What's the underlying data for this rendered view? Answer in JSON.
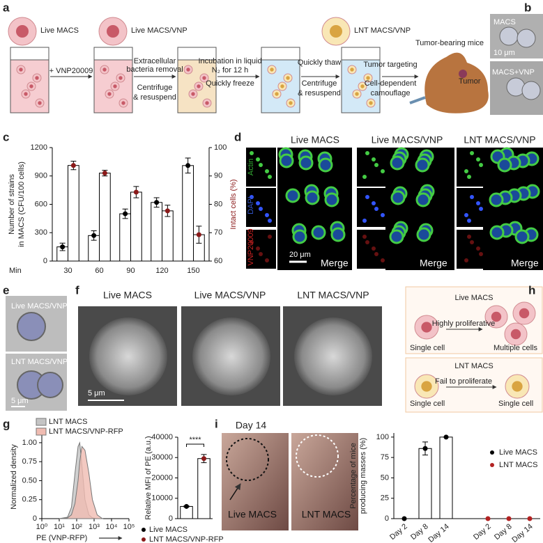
{
  "figure": {
    "letters": [
      "a",
      "b",
      "c",
      "d",
      "e",
      "f",
      "g",
      "h",
      "i"
    ],
    "a": {
      "cells": [
        "Live MACS",
        "Live MACS/VNP",
        "LNT MACS/VNP"
      ],
      "step1": "+ VNP20009",
      "step2": [
        "Extracellular",
        "bacteria removal",
        "Centrifuge",
        "& resuspend"
      ],
      "step3": [
        "Incubation in liquid",
        "N₂ for 12 h",
        "Quickly freeze"
      ],
      "step4": [
        "Quickly thaw",
        "Centrifuge",
        "& resuspend"
      ],
      "step5": [
        "Tumor targeting",
        "Cell-dependent",
        "camouflage"
      ],
      "mice": "Tumor-bearing mice",
      "tumor": "Tumor"
    },
    "b": {
      "top": "MACS",
      "scale": "10 μm",
      "bottom": "MACS+VNP"
    },
    "d": {
      "titles": [
        "Live MACS",
        "Live MACS/VNP",
        "LNT MACS/VNP"
      ],
      "channels": [
        "Actin",
        "DAPI",
        "VNP20009"
      ],
      "merge": "Merge",
      "scale": "20 μm"
    },
    "e": {
      "top": "Live MACS/VNP",
      "bottom": "LNT MACS/VNP",
      "scale": "5 μm"
    },
    "f": {
      "titles": [
        "Live MACS",
        "Live MACS/VNP",
        "LNT MACS/VNP"
      ],
      "scale": "5 μm"
    },
    "h": {
      "top": {
        "title": "Live MACS",
        "arrow": "Highly proliferative",
        "from": "Single cell",
        "to": "Multiple cells"
      },
      "bottom": {
        "title": "LNT MACS",
        "arrow": "Fail to proliferate",
        "from": "Single cell",
        "to": "Single cell"
      }
    },
    "i": {
      "title": "Day 14",
      "images": [
        "Live MACS",
        "LNT MACS"
      ]
    }
  },
  "chart_data": [
    {
      "type": "bar",
      "categories": [
        "30",
        "60",
        "90",
        "120",
        "150"
      ],
      "x_label": "Min",
      "y_label": [
        "Number of strains",
        "in MACS (CFU/100 cells)"
      ],
      "y2_label": "Intact cells (%)",
      "ylim": [
        0,
        1200
      ],
      "yticks": [
        0,
        300,
        600,
        900,
        1200
      ],
      "y2lim": [
        60,
        100
      ],
      "y2ticks": [
        60,
        70,
        80,
        90,
        100
      ],
      "series": [
        {
          "color": "#000000",
          "values": [
            150,
            270,
            500,
            620,
            1010
          ],
          "errors": [
            40,
            50,
            50,
            50,
            80
          ]
        },
        {
          "color": "#8b1a1a",
          "axis": "y2",
          "values": [
            93.7,
            91,
            84.3,
            77.7,
            69.3
          ],
          "errors": [
            1.5,
            1,
            2,
            2,
            3
          ]
        }
      ]
    },
    {
      "type": "line",
      "xscale": "log",
      "x": [
        10,
        30,
        50,
        80,
        120,
        150,
        200,
        300,
        500,
        800,
        1500,
        3000
      ],
      "xlim": [
        1,
        100000
      ],
      "xticks": [
        {
          "value": 1,
          "label": "10⁰"
        },
        {
          "value": 10,
          "label": "10¹"
        },
        {
          "value": 100,
          "label": "10²"
        },
        {
          "value": 1000,
          "label": "10³"
        },
        {
          "value": 10000,
          "label": "10⁴"
        },
        {
          "value": 100000,
          "label": "10⁵"
        }
      ],
      "ylim": [
        0,
        1.1
      ],
      "yticks": [
        0,
        0.25,
        {
          "value": 0.5,
          "label": "0.50"
        },
        0.75,
        {
          "value": 1,
          "label": "1.00"
        }
      ],
      "x_label": "PE (VNP-RFP)",
      "y_label": "Normalized density",
      "series": [
        {
          "name": "LNT MACS",
          "color": "#c4c4c4",
          "values": [
            0,
            0.02,
            0.15,
            0.6,
            0.95,
            1.0,
            0.7,
            0.25,
            0.05,
            0.01,
            0,
            0
          ]
        },
        {
          "name": "LNT MACS/VNP-RFP",
          "color": "#f0bcb2",
          "values": [
            0,
            0.01,
            0.05,
            0.2,
            0.5,
            0.75,
            0.95,
            0.9,
            0.6,
            0.25,
            0.05,
            0
          ]
        }
      ]
    },
    {
      "type": "bar",
      "categories": [
        "Live MACS",
        "LNT MACS/VNP-RFP"
      ],
      "values": [
        6000,
        29500
      ],
      "errors": [
        300,
        2000
      ],
      "colors": [
        "#000000",
        "#8b1a1a"
      ],
      "ylim": [
        0,
        40000
      ],
      "yticks": [
        0,
        10000,
        20000,
        30000,
        40000
      ],
      "y_label": "Relative MFI of PE (a.u.)",
      "annotation": "****"
    },
    {
      "type": "bar",
      "categories": [
        "Day 2",
        "Day 8",
        "Day 14"
      ],
      "ylim": [
        0,
        105
      ],
      "yticks": [
        0,
        25,
        50,
        75,
        100
      ],
      "y_label": [
        "Percentage of mice",
        "producing masses (%)"
      ],
      "series": [
        {
          "name": "Live MACS",
          "color": "#000000",
          "values": [
            0,
            86,
            100
          ],
          "errors": [
            0,
            8,
            0
          ]
        },
        {
          "name": "LNT MACS",
          "color": "#b22222",
          "values": [
            0,
            0,
            0
          ],
          "errors": [
            0,
            0,
            0
          ]
        }
      ]
    }
  ]
}
